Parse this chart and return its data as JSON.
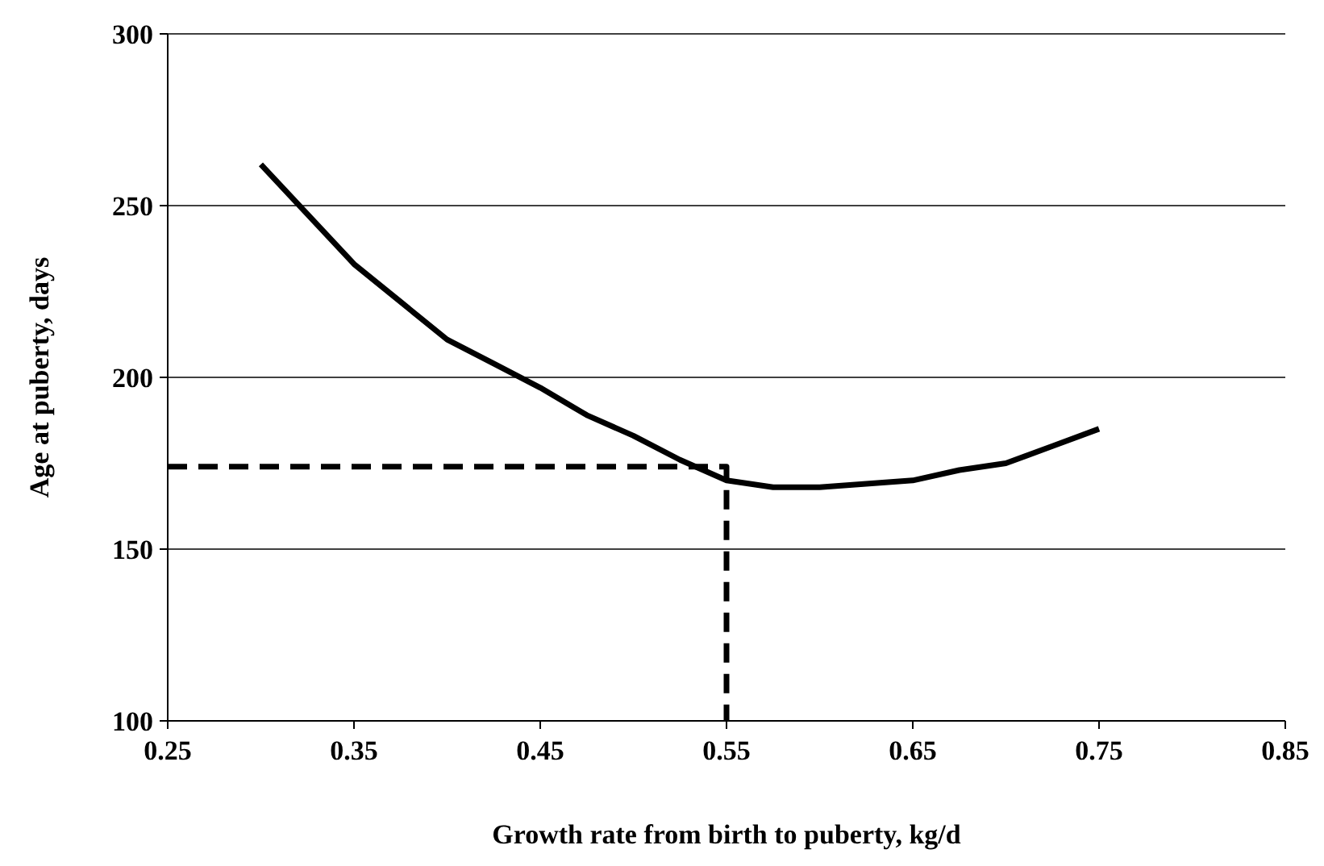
{
  "chart_data": {
    "type": "line",
    "xlabel": "Growth rate from birth to puberty, kg/d",
    "ylabel": "Age at puberty, days",
    "xlim": [
      0.25,
      0.85
    ],
    "xticks": [
      {
        "value": 0.25,
        "label": "0.25"
      },
      {
        "value": 0.35,
        "label": "0.35"
      },
      {
        "value": 0.45,
        "label": "0.45"
      },
      {
        "value": 0.55,
        "label": "0.55"
      },
      {
        "value": 0.65,
        "label": "0.65"
      },
      {
        "value": 0.75,
        "label": "0.75"
      },
      {
        "value": 0.85,
        "label": "0.85"
      }
    ],
    "ylim": [
      100,
      300
    ],
    "yticks": [
      100,
      150,
      200,
      250,
      300
    ],
    "grid": "y",
    "marker": "none",
    "series": [
      {
        "color": "#000000",
        "line_style": "solid",
        "x": [
          0.3,
          0.35,
          0.375,
          0.4,
          0.425,
          0.45,
          0.475,
          0.5,
          0.525,
          0.55,
          0.575,
          0.6,
          0.625,
          0.65,
          0.675,
          0.7,
          0.725,
          0.75
        ],
        "values": [
          262,
          233,
          222,
          211,
          204,
          197,
          189,
          183,
          176,
          170,
          168,
          168,
          169,
          170,
          173,
          175,
          180,
          185
        ]
      },
      {
        "color": "#000000",
        "line_style": "dashed",
        "x": [
          0.25,
          0.55,
          0.55
        ],
        "values": [
          174,
          174,
          100
        ]
      }
    ]
  }
}
